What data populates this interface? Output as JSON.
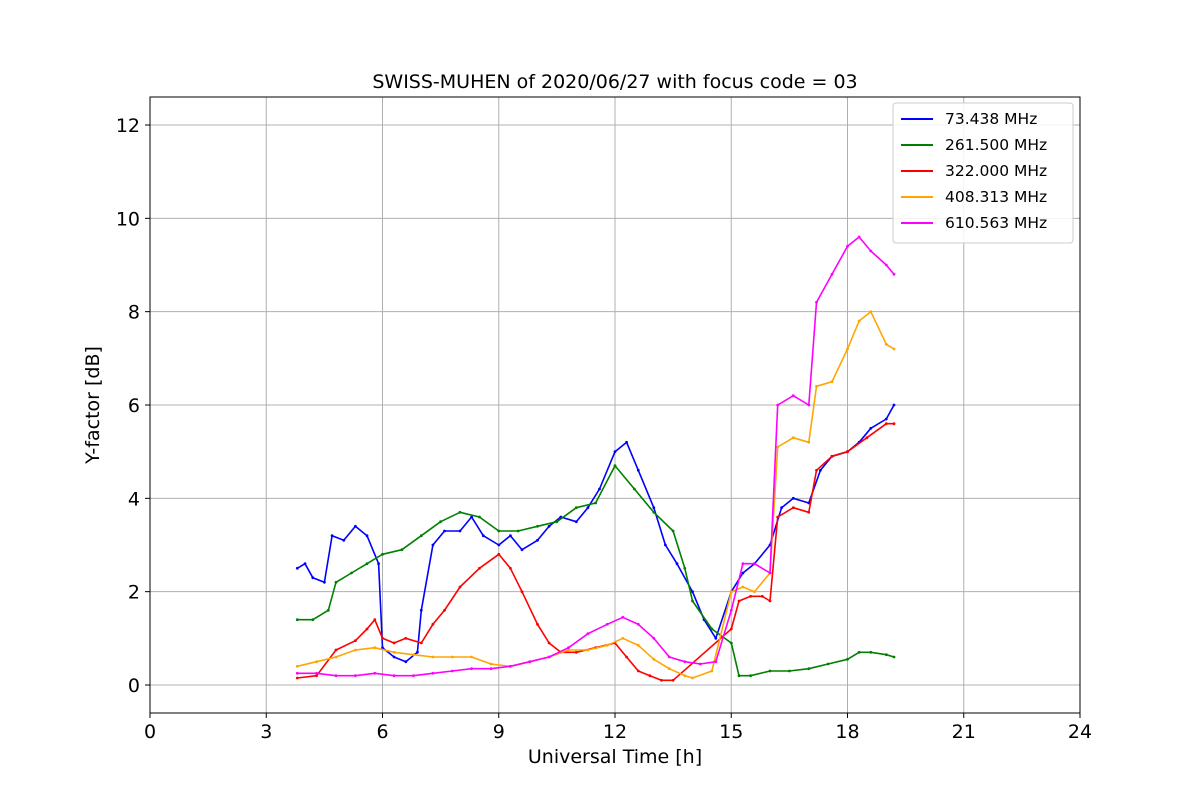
{
  "chart_data": {
    "type": "line",
    "title": "SWISS-MUHEN of 2020/06/27 with focus code = 03",
    "xlabel": "Universal Time [h]",
    "ylabel": "Y-factor [dB]",
    "xlim": [
      0,
      24
    ],
    "ylim": [
      -0.6,
      12.6
    ],
    "xticks": [
      0,
      3,
      6,
      9,
      12,
      15,
      18,
      21,
      24
    ],
    "yticks": [
      0,
      2,
      4,
      6,
      8,
      10,
      12
    ],
    "grid": true,
    "legend_position": "top-right",
    "series": [
      {
        "name": "  73.438 MHz",
        "color": "#0000ff",
        "x": [
          3.8,
          4.0,
          4.2,
          4.5,
          4.7,
          5.0,
          5.3,
          5.6,
          5.9,
          6.0,
          6.3,
          6.6,
          6.9,
          7.0,
          7.3,
          7.6,
          8.0,
          8.3,
          8.6,
          9.0,
          9.3,
          9.6,
          10.0,
          10.3,
          10.6,
          11.0,
          11.3,
          11.6,
          12.0,
          12.3,
          12.6,
          13.0,
          13.3,
          13.6,
          14.0,
          14.3,
          14.6,
          15.0,
          15.3,
          15.6,
          16.0,
          16.3,
          16.6,
          17.0,
          17.3,
          17.6,
          18.0,
          18.3,
          18.6,
          19.0,
          19.2
        ],
        "y": [
          2.5,
          2.6,
          2.3,
          2.2,
          3.2,
          3.1,
          3.4,
          3.2,
          2.6,
          0.8,
          0.6,
          0.5,
          0.7,
          1.6,
          3.0,
          3.3,
          3.3,
          3.6,
          3.2,
          3.0,
          3.2,
          2.9,
          3.1,
          3.4,
          3.6,
          3.5,
          3.8,
          4.2,
          5.0,
          5.2,
          4.6,
          3.8,
          3.0,
          2.6,
          2.0,
          1.4,
          1.0,
          2.0,
          2.4,
          2.6,
          3.0,
          3.8,
          4.0,
          3.9,
          4.6,
          4.9,
          5.0,
          5.2,
          5.5,
          5.7,
          6.0
        ]
      },
      {
        "name": "261.500 MHz",
        "color": "#008000",
        "x": [
          3.8,
          4.2,
          4.6,
          4.8,
          5.2,
          5.6,
          6.0,
          6.5,
          7.0,
          7.5,
          8.0,
          8.5,
          9.0,
          9.5,
          10.0,
          10.5,
          11.0,
          11.5,
          12.0,
          12.5,
          13.0,
          13.5,
          13.8,
          14.0,
          14.5,
          15.0,
          15.2,
          15.5,
          16.0,
          16.5,
          17.0,
          17.5,
          18.0,
          18.3,
          18.6,
          19.0,
          19.2
        ],
        "y": [
          1.4,
          1.4,
          1.6,
          2.2,
          2.4,
          2.6,
          2.8,
          2.9,
          3.2,
          3.5,
          3.7,
          3.6,
          3.3,
          3.3,
          3.4,
          3.5,
          3.8,
          3.9,
          4.7,
          4.2,
          3.7,
          3.3,
          2.5,
          1.8,
          1.2,
          0.9,
          0.2,
          0.2,
          0.3,
          0.3,
          0.35,
          0.45,
          0.55,
          0.7,
          0.7,
          0.65,
          0.6
        ]
      },
      {
        "name": "322.000 MHz",
        "color": "#ff0000",
        "x": [
          3.8,
          4.3,
          4.8,
          5.3,
          5.6,
          5.8,
          6.0,
          6.3,
          6.6,
          7.0,
          7.3,
          7.6,
          8.0,
          8.5,
          9.0,
          9.3,
          9.6,
          10.0,
          10.3,
          10.6,
          11.0,
          11.5,
          12.0,
          12.3,
          12.6,
          12.9,
          13.2,
          13.5,
          15.0,
          15.2,
          15.5,
          15.8,
          16.0,
          16.2,
          16.6,
          17.0,
          17.2,
          17.6,
          18.0,
          18.5,
          19.0,
          19.2
        ],
        "y": [
          0.15,
          0.2,
          0.75,
          0.95,
          1.2,
          1.4,
          1.0,
          0.9,
          1.0,
          0.9,
          1.3,
          1.6,
          2.1,
          2.5,
          2.8,
          2.5,
          2.0,
          1.3,
          0.9,
          0.7,
          0.7,
          0.8,
          0.9,
          0.6,
          0.3,
          0.2,
          0.1,
          0.1,
          1.2,
          1.8,
          1.9,
          1.9,
          1.8,
          3.6,
          3.8,
          3.7,
          4.6,
          4.9,
          5.0,
          5.3,
          5.6,
          5.6
        ]
      },
      {
        "name": "408.313 MHz",
        "color": "#ffa500",
        "x": [
          3.8,
          4.3,
          4.8,
          5.3,
          5.8,
          6.3,
          6.8,
          7.3,
          7.8,
          8.3,
          8.8,
          9.3,
          9.8,
          10.3,
          10.8,
          11.3,
          11.8,
          12.2,
          12.6,
          13.0,
          13.4,
          13.8,
          14.0,
          14.5,
          15.0,
          15.3,
          15.6,
          16.0,
          16.2,
          16.6,
          17.0,
          17.2,
          17.6,
          18.0,
          18.3,
          18.6,
          19.0,
          19.2
        ],
        "y": [
          0.4,
          0.5,
          0.6,
          0.75,
          0.8,
          0.7,
          0.65,
          0.6,
          0.6,
          0.6,
          0.45,
          0.4,
          0.5,
          0.6,
          0.75,
          0.75,
          0.85,
          1.0,
          0.85,
          0.55,
          0.35,
          0.2,
          0.15,
          0.3,
          2.0,
          2.1,
          2.0,
          2.4,
          5.1,
          5.3,
          5.2,
          6.4,
          6.5,
          7.2,
          7.8,
          8.0,
          7.3,
          7.2
        ]
      },
      {
        "name": "610.563 MHz",
        "color": "#ff00ff",
        "x": [
          3.8,
          4.3,
          4.8,
          5.3,
          5.8,
          6.3,
          6.8,
          7.3,
          7.8,
          8.3,
          8.8,
          9.3,
          9.8,
          10.3,
          10.8,
          11.3,
          11.8,
          12.2,
          12.6,
          13.0,
          13.4,
          13.8,
          14.2,
          14.6,
          15.0,
          15.3,
          15.6,
          16.0,
          16.2,
          16.6,
          17.0,
          17.2,
          17.6,
          18.0,
          18.3,
          18.6,
          19.0,
          19.2
        ],
        "y": [
          0.25,
          0.25,
          0.2,
          0.2,
          0.25,
          0.2,
          0.2,
          0.25,
          0.3,
          0.35,
          0.35,
          0.4,
          0.5,
          0.6,
          0.8,
          1.1,
          1.3,
          1.45,
          1.3,
          1.0,
          0.6,
          0.5,
          0.45,
          0.5,
          1.6,
          2.6,
          2.6,
          2.4,
          6.0,
          6.2,
          6.0,
          8.2,
          8.8,
          9.4,
          9.6,
          9.3,
          9.0,
          8.8
        ]
      }
    ]
  }
}
